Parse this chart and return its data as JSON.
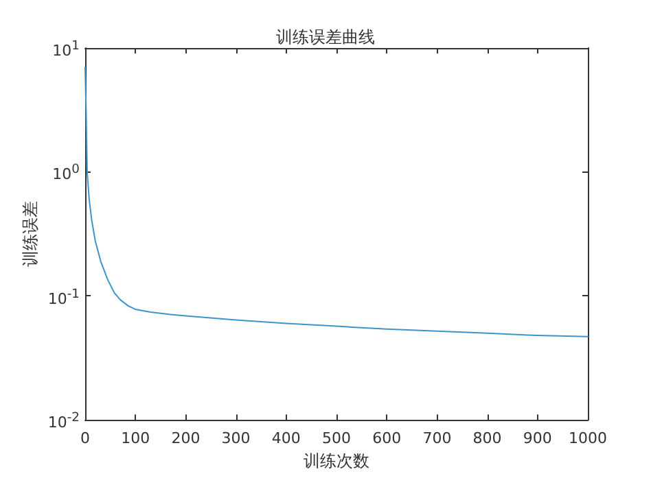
{
  "chart_data": {
    "type": "line",
    "title": "训练误差曲线",
    "xlabel": "训练次数",
    "ylabel": "训练误差",
    "x": [
      0,
      2,
      4,
      8,
      13,
      20,
      31,
      45,
      58,
      70,
      86,
      100,
      130,
      167,
      200,
      300,
      400,
      500,
      600,
      700,
      800,
      900,
      1000
    ],
    "series": [
      {
        "color": "#3d94cc",
        "values": [
          7,
          3,
          1.0,
          0.6,
          0.41,
          0.28,
          0.19,
          0.135,
          0.106,
          0.093,
          0.083,
          0.078,
          0.074,
          0.071,
          0.069,
          0.064,
          0.06,
          0.057,
          0.054,
          0.052,
          0.05,
          0.048,
          0.047
        ]
      }
    ],
    "log": "y",
    "xlim": [
      0,
      1000
    ],
    "xticks": [
      0,
      100,
      200,
      300,
      400,
      500,
      600,
      700,
      800,
      900,
      1000
    ],
    "ylim": [
      0.01,
      10
    ],
    "yticks": [
      {
        "value": 0.01,
        "label": "10$^{-2}$"
      },
      {
        "value": 0.1,
        "label": "10$^{-1}$"
      },
      {
        "value": 1,
        "label": "10$^{0}$"
      },
      {
        "value": 10,
        "label": "10$^{1}$"
      }
    ],
    "grid": false,
    "marker": "none",
    "line_style": "solid"
  }
}
